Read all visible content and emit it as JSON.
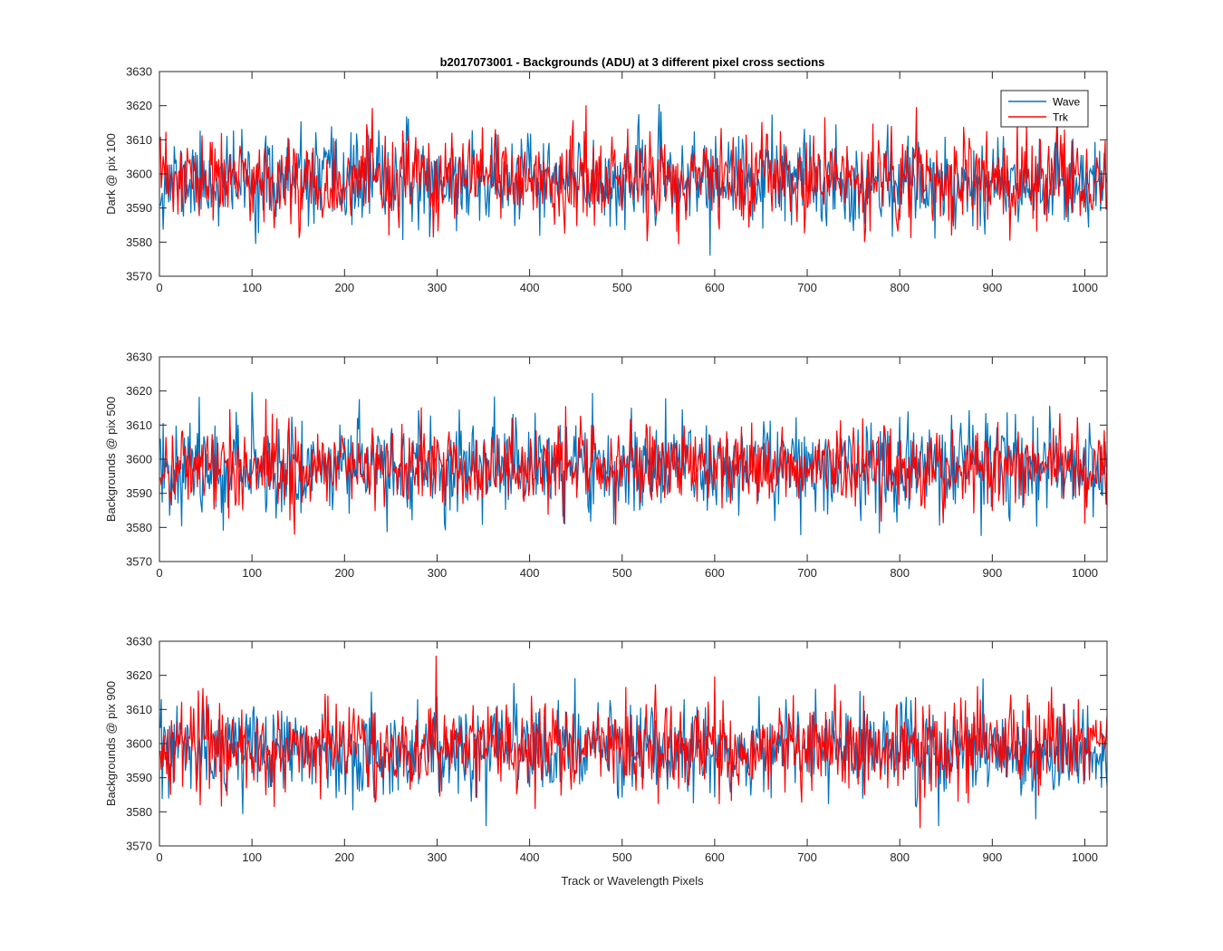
{
  "figure": {
    "title": "b2017073001 - Backgrounds (ADU) at 3 different pixel cross sections",
    "xlabel": "Track or Wavelength Pixels"
  },
  "colors": {
    "wave": "#0072BD",
    "trk": "#FF0000",
    "axis": "#262626"
  },
  "legend": {
    "placement": "top-right",
    "items": [
      {
        "label": "Wave",
        "color": "#0072BD"
      },
      {
        "label": "Trk",
        "color": "#FF0000"
      }
    ]
  },
  "chart_data": [
    {
      "type": "line",
      "ylabel": "Dark @ pix 100",
      "xlim": [
        0,
        1024
      ],
      "ylim": [
        3570,
        3630
      ],
      "xticks": [
        0,
        100,
        200,
        300,
        400,
        500,
        600,
        700,
        800,
        900,
        1000
      ],
      "yticks": [
        3570,
        3580,
        3590,
        3600,
        3610,
        3620,
        3630
      ],
      "series": [
        {
          "name": "Wave",
          "samples": 1024,
          "mean": 3598,
          "std": 6.5,
          "min": 3576,
          "max": 3622,
          "seed": 11
        },
        {
          "name": "Trk",
          "samples": 1024,
          "mean": 3598,
          "std": 6.5,
          "min": 3573,
          "max": 3621,
          "seed": 23
        }
      ]
    },
    {
      "type": "line",
      "ylabel": "Backgrounds @ pix 500",
      "xlim": [
        0,
        1024
      ],
      "ylim": [
        3570,
        3630
      ],
      "xticks": [
        0,
        100,
        200,
        300,
        400,
        500,
        600,
        700,
        800,
        900,
        1000
      ],
      "yticks": [
        3570,
        3580,
        3590,
        3600,
        3610,
        3620,
        3630
      ],
      "series": [
        {
          "name": "Wave",
          "samples": 1024,
          "mean": 3598,
          "std": 7.0,
          "min": 3573,
          "max": 3624,
          "seed": 37
        },
        {
          "name": "Trk",
          "samples": 1024,
          "mean": 3598,
          "std": 6.0,
          "min": 3574,
          "max": 3624,
          "seed": 41
        }
      ]
    },
    {
      "type": "line",
      "ylabel": "Backgrounds @ pix 900",
      "xlim": [
        0,
        1024
      ],
      "ylim": [
        3570,
        3630
      ],
      "xticks": [
        0,
        100,
        200,
        300,
        400,
        500,
        600,
        700,
        800,
        900,
        1000
      ],
      "yticks": [
        3570,
        3580,
        3590,
        3600,
        3610,
        3620,
        3630
      ],
      "series": [
        {
          "name": "Wave",
          "samples": 1024,
          "mean": 3598,
          "std": 6.5,
          "min": 3571,
          "max": 3627,
          "seed": 53
        },
        {
          "name": "Trk",
          "samples": 1024,
          "mean": 3599,
          "std": 6.5,
          "min": 3571,
          "max": 3626,
          "seed": 67
        }
      ]
    }
  ]
}
